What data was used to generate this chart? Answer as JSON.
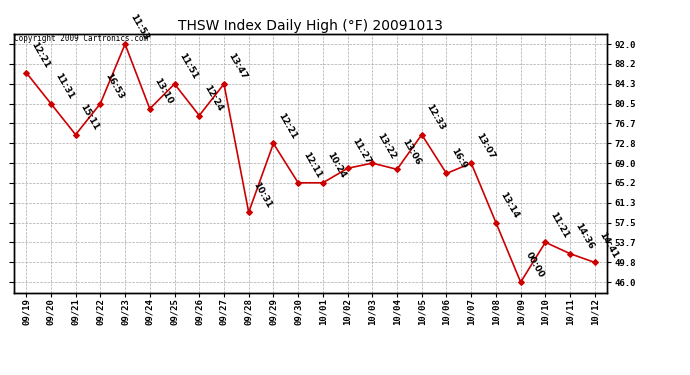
{
  "title": "THSW Index Daily High (°F) 20091013",
  "copyright": "Copyright 2009 Cartronics.com",
  "x_labels": [
    "09/19",
    "09/20",
    "09/21",
    "09/22",
    "09/23",
    "09/24",
    "09/25",
    "09/26",
    "09/27",
    "09/28",
    "09/29",
    "09/30",
    "10/01",
    "10/02",
    "10/03",
    "10/04",
    "10/05",
    "10/06",
    "10/07",
    "10/08",
    "10/09",
    "10/10",
    "10/11",
    "10/12"
  ],
  "y_values": [
    86.5,
    80.5,
    74.5,
    80.5,
    92.0,
    79.5,
    84.3,
    78.2,
    84.3,
    59.5,
    72.8,
    65.2,
    65.2,
    68.0,
    69.0,
    67.8,
    74.5,
    67.0,
    69.0,
    57.5,
    46.0,
    53.7,
    51.5,
    49.8
  ],
  "time_labels": [
    "12:21",
    "11:31",
    "15:11",
    "16:53",
    "11:53",
    "13:10",
    "11:51",
    "12:24",
    "13:47",
    "10:31",
    "12:21",
    "12:11",
    "10:24",
    "11:27",
    "13:22",
    "13:06",
    "12:33",
    "16:9",
    "13:07",
    "13:14",
    "00:00",
    "11:21",
    "14:36",
    "14:41"
  ],
  "y_ticks": [
    46.0,
    49.8,
    53.7,
    57.5,
    61.3,
    65.2,
    69.0,
    72.8,
    76.7,
    80.5,
    84.3,
    88.2,
    92.0
  ],
  "line_color": "#cc0000",
  "marker_color": "#cc0000",
  "background_color": "#ffffff",
  "grid_color": "#aaaaaa",
  "title_fontsize": 10,
  "tick_fontsize": 6.5,
  "annotation_fontsize": 6.5,
  "ylim": [
    44.0,
    94.0
  ],
  "xlim_min": -0.5,
  "xlim_max": 23.5
}
